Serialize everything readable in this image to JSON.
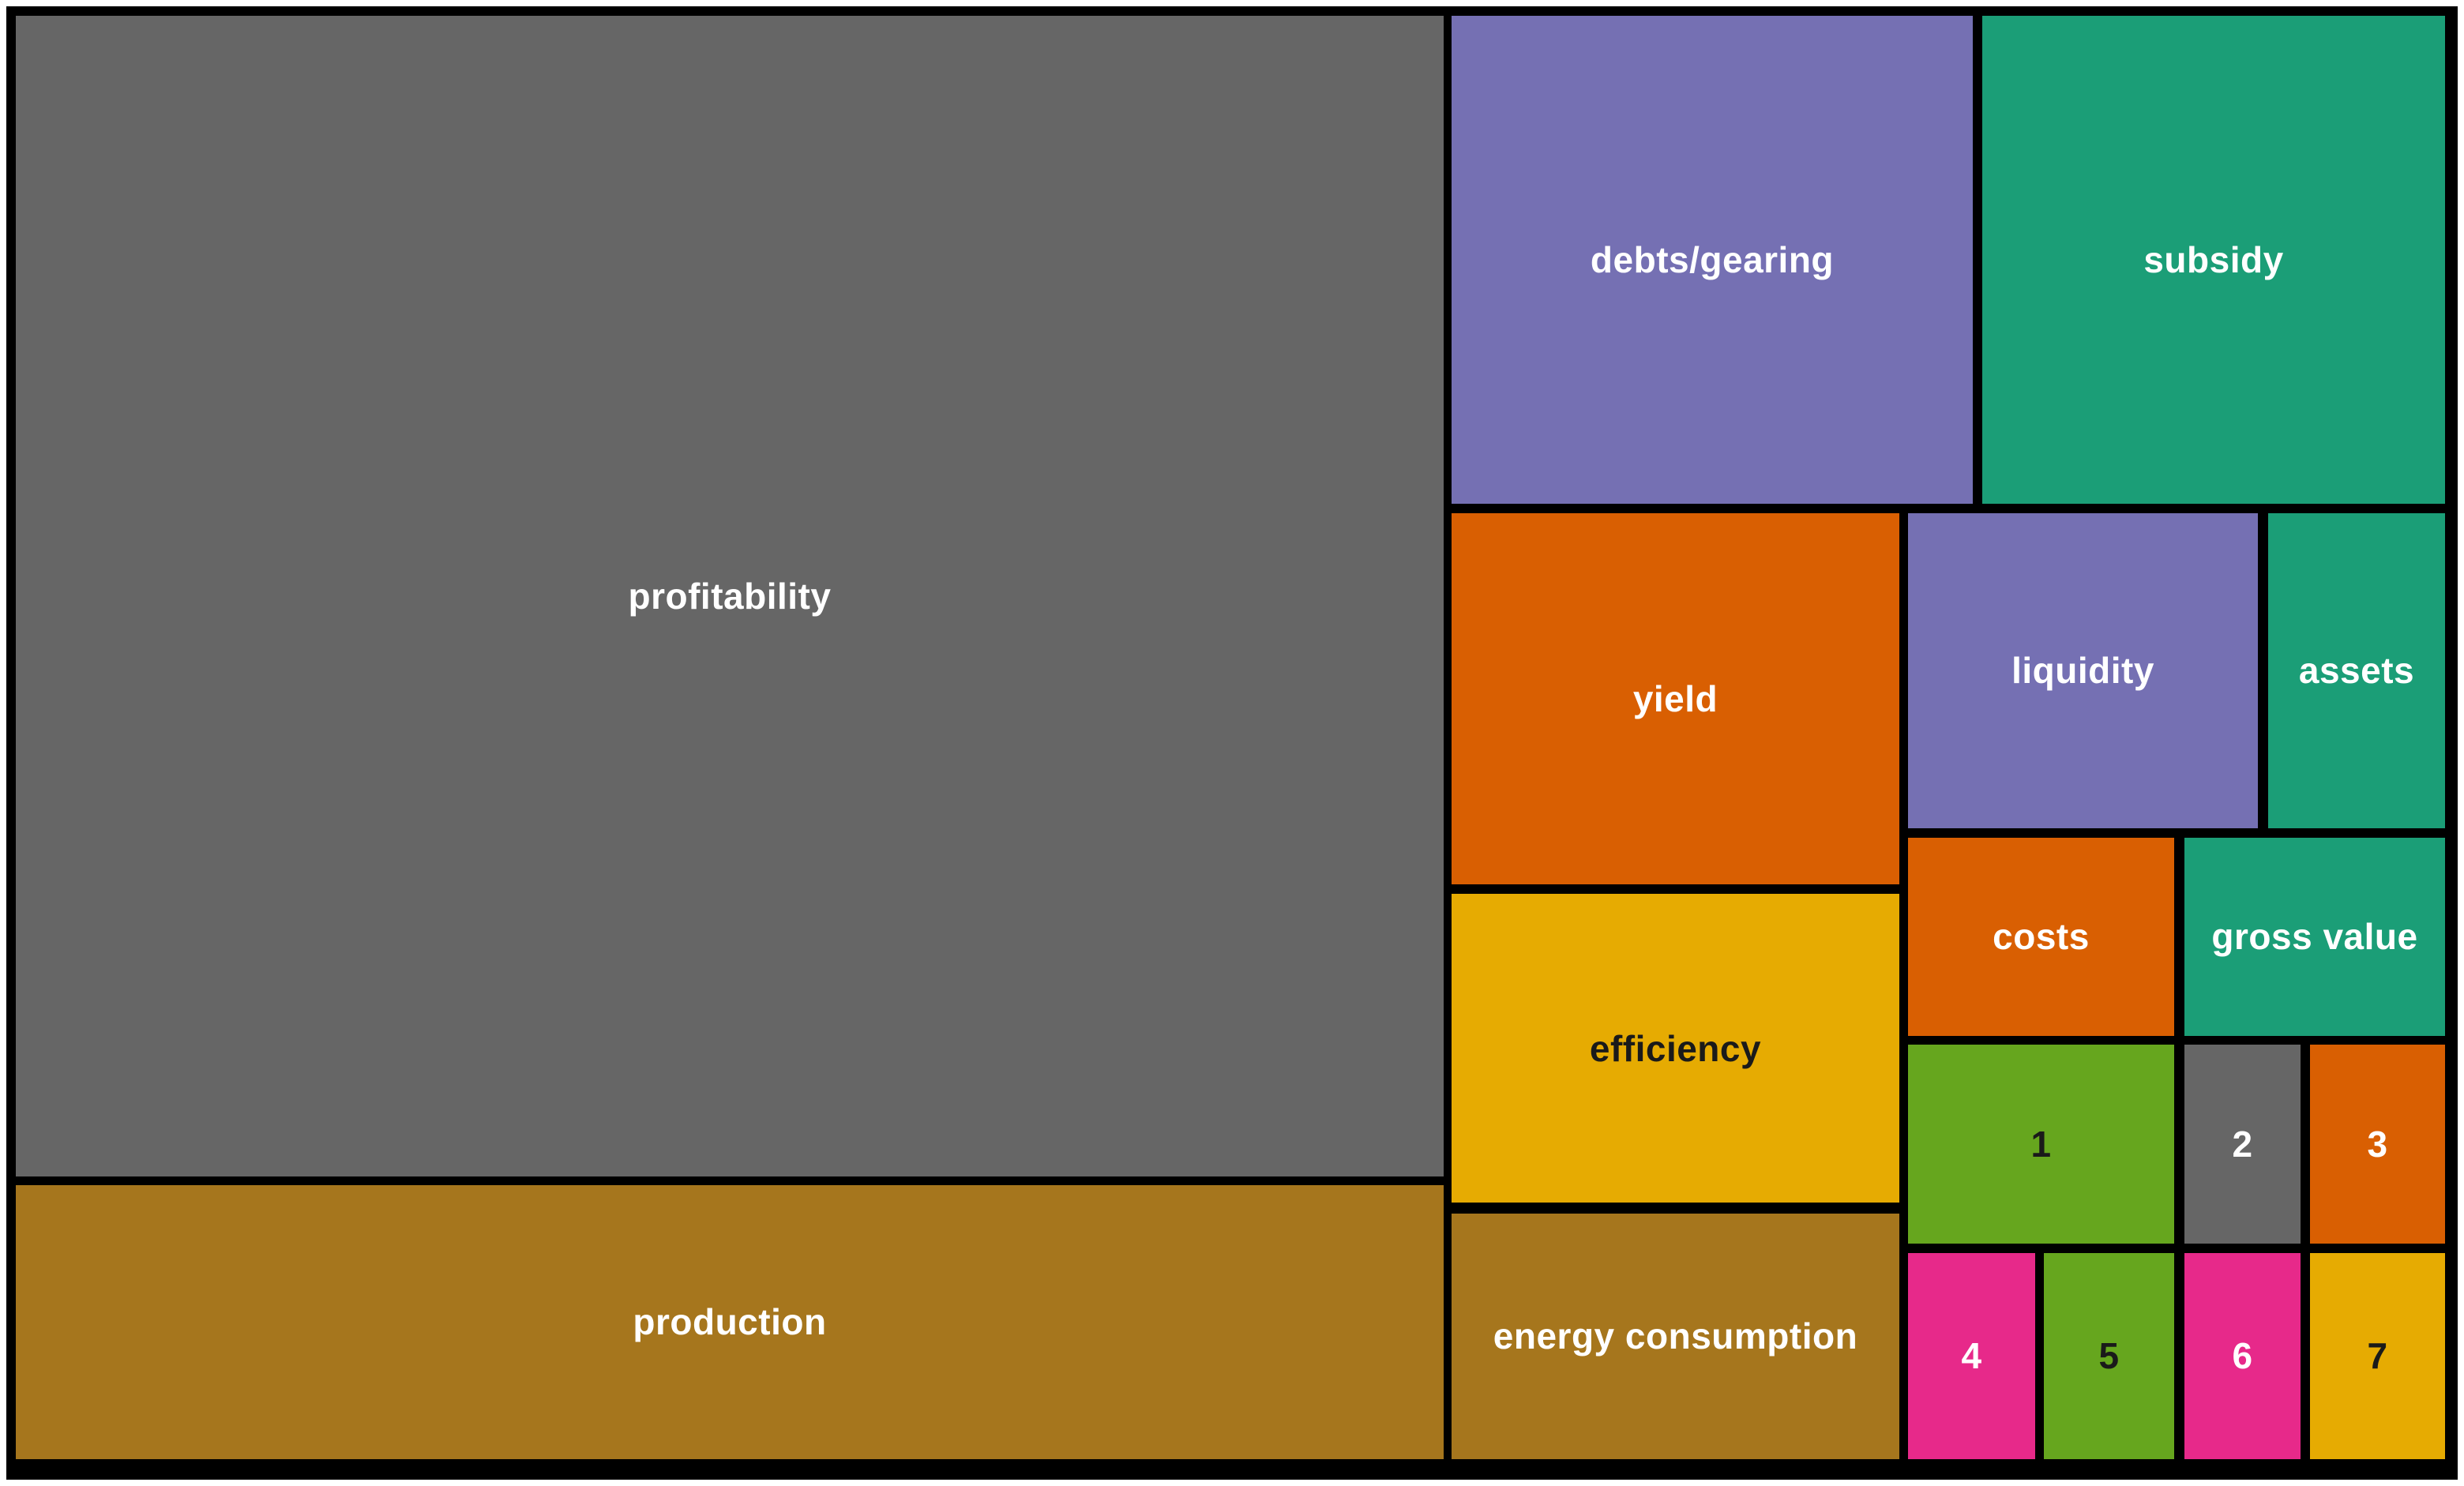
{
  "figure": {
    "background_color": "#ffffff",
    "frame_color": "#000000",
    "palette_name": "Dark2",
    "palette": [
      "#1b9e77",
      "#d95f02",
      "#7570b3",
      "#e7298a",
      "#66a61e",
      "#e6ab02",
      "#a6761d",
      "#666666"
    ]
  },
  "chart_data": {
    "type": "treemap",
    "title": "",
    "legend": "none",
    "gridlines": "black gutters between tiles, black outer frame on white page margin",
    "tiles": [
      {
        "label": "profitability",
        "area_pct": 48.4,
        "color": "#666666",
        "text_color": "#ffffff",
        "x": 0.641,
        "y": 1.063,
        "w": 57.949,
        "h": 78.108
      },
      {
        "label": "production",
        "area_pct": 11.4,
        "color": "#a6761d",
        "text_color": "#ffffff",
        "x": 0.641,
        "y": 79.755,
        "w": 57.949,
        "h": 18.438
      },
      {
        "label": "debts/gearing",
        "area_pct": 7.4,
        "color": "#7570b3",
        "text_color": "#ffffff",
        "x": 58.91,
        "y": 1.063,
        "w": 21.154,
        "h": 32.837
      },
      {
        "label": "subsidy",
        "area_pct": 6.6,
        "color": "#1b9e77",
        "text_color": "#ffffff",
        "x": 80.449,
        "y": 1.063,
        "w": 18.782,
        "h": 32.837
      },
      {
        "label": "yield",
        "area_pct": 4.9,
        "color": "#d95f02",
        "text_color": "#ffffff",
        "x": 58.91,
        "y": 34.537,
        "w": 18.173,
        "h": 24.973
      },
      {
        "label": "efficiency",
        "area_pct": 4.0,
        "color": "#e6ab02",
        "text_color": "#1a1a1a",
        "x": 58.91,
        "y": 60.149,
        "w": 18.173,
        "h": 20.776
      },
      {
        "label": "energy consumption",
        "area_pct": 3.2,
        "color": "#a6761d",
        "text_color": "#ffffff",
        "x": 58.91,
        "y": 81.668,
        "w": 18.173,
        "h": 16.525
      },
      {
        "label": "liquidity",
        "area_pct": 3.2,
        "color": "#7570b3",
        "text_color": "#ffffff",
        "x": 77.436,
        "y": 34.537,
        "w": 14.199,
        "h": 21.201
      },
      {
        "label": "assets",
        "area_pct": 1.6,
        "color": "#1b9e77",
        "text_color": "#ffffff",
        "x": 92.051,
        "y": 34.537,
        "w": 7.179,
        "h": 21.201
      },
      {
        "label": "costs",
        "area_pct": 1.5,
        "color": "#d95f02",
        "text_color": "#ffffff",
        "x": 77.436,
        "y": 56.376,
        "w": 10.801,
        "h": 13.337
      },
      {
        "label": "gross value",
        "area_pct": 1.5,
        "color": "#1b9e77",
        "text_color": "#ffffff",
        "x": 88.654,
        "y": 56.376,
        "w": 10.577,
        "h": 13.337
      },
      {
        "label": "1",
        "area_pct": 1.5,
        "color": "#66a61e",
        "text_color": "#1a1a1a",
        "x": 77.436,
        "y": 70.297,
        "w": 10.801,
        "h": 13.39
      },
      {
        "label": "2",
        "area_pct": 0.7,
        "color": "#666666",
        "text_color": "#ffffff",
        "x": 88.654,
        "y": 70.297,
        "w": 4.712,
        "h": 13.39
      },
      {
        "label": "3",
        "area_pct": 0.8,
        "color": "#d95f02",
        "text_color": "#ffffff",
        "x": 93.75,
        "y": 70.297,
        "w": 5.481,
        "h": 13.39
      },
      {
        "label": "4",
        "area_pct": 0.8,
        "color": "#e7298a",
        "text_color": "#ffffff",
        "x": 77.436,
        "y": 84.325,
        "w": 5.16,
        "h": 13.868
      },
      {
        "label": "5",
        "area_pct": 0.8,
        "color": "#66a61e",
        "text_color": "#1a1a1a",
        "x": 82.949,
        "y": 84.325,
        "w": 5.288,
        "h": 13.868
      },
      {
        "label": "6",
        "area_pct": 0.7,
        "color": "#e7298a",
        "text_color": "#ffffff",
        "x": 88.654,
        "y": 84.325,
        "w": 4.712,
        "h": 13.868
      },
      {
        "label": "7",
        "area_pct": 0.8,
        "color": "#e6ab02",
        "text_color": "#1a1a1a",
        "x": 93.75,
        "y": 84.325,
        "w": 5.481,
        "h": 13.868
      }
    ]
  }
}
